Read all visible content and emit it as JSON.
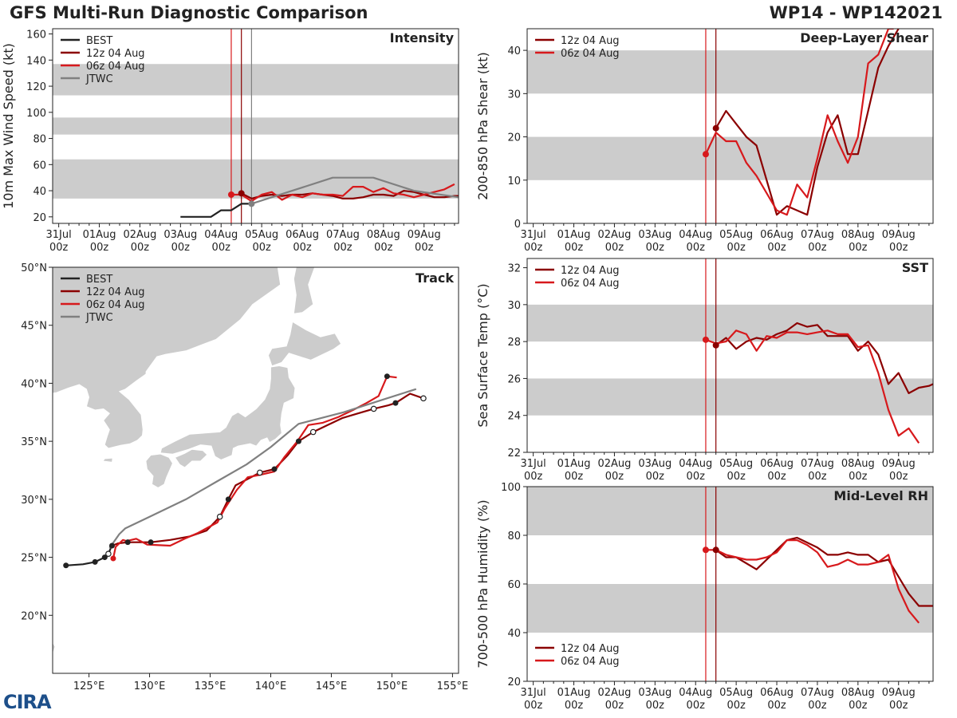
{
  "header": {
    "left_title": "GFS Multi-Run Diagnostic Comparison",
    "right_title": "WP14 - WP142021"
  },
  "logo_text": "CIRA",
  "colors": {
    "best": "#222222",
    "run12": "#8b0000",
    "run06": "#d7191c",
    "jtwc": "#808080",
    "band": "#cccccc",
    "land": "#cccccc"
  },
  "time_axis": {
    "labels": [
      "31Jul\n00z",
      "01Aug\n00z",
      "02Aug\n00z",
      "03Aug\n00z",
      "04Aug\n00z",
      "05Aug\n00z",
      "06Aug\n00z",
      "07Aug\n00z",
      "08Aug\n00z",
      "09Aug\n00z"
    ],
    "range_days": [
      -0.15,
      9.85
    ]
  },
  "chart_data": [
    {
      "id": "intensity",
      "type": "line",
      "title": "Intensity",
      "ylabel": "10m Max Wind Speed (kt)",
      "ylim": [
        15,
        164
      ],
      "yticks": [
        20,
        40,
        60,
        80,
        100,
        120,
        140,
        160
      ],
      "bands": [
        [
          34,
          64
        ],
        [
          83,
          96
        ],
        [
          113,
          137
        ]
      ],
      "vlines": [
        {
          "x": 4.25,
          "color": "run06"
        },
        {
          "x": 4.5,
          "color": "run12"
        },
        {
          "x": 4.75,
          "color": "jtwc"
        }
      ],
      "legend": [
        {
          "label": "BEST",
          "color": "best"
        },
        {
          "label": "12z 04 Aug",
          "color": "run12"
        },
        {
          "label": "06z 04 Aug",
          "color": "run06"
        },
        {
          "label": "JTWC",
          "color": "jtwc"
        }
      ],
      "series": [
        {
          "name": "BEST",
          "color": "best",
          "marker_index": -1,
          "x": [
            3,
            3.25,
            3.5,
            3.75,
            4,
            4.25,
            4.5,
            4.75
          ],
          "y": [
            20,
            20,
            20,
            20,
            25,
            25,
            30,
            30
          ]
        },
        {
          "name": "12z 04 Aug",
          "color": "run12",
          "marker_index": 0,
          "x": [
            4.5,
            4.75,
            5,
            5.25,
            5.5,
            5.75,
            6,
            6.25,
            6.5,
            6.75,
            7,
            7.25,
            7.5,
            7.75,
            8,
            8.25,
            8.5,
            8.75,
            9,
            9.25,
            9.5,
            9.75,
            9.85
          ],
          "y": [
            38,
            34,
            36,
            37,
            36,
            37,
            37,
            38,
            37,
            36,
            34,
            34,
            35,
            37,
            37,
            36,
            40,
            39,
            37,
            35,
            35,
            36,
            36
          ]
        },
        {
          "name": "06z 04 Aug",
          "color": "run06",
          "marker_index": 0,
          "x": [
            4.25,
            4.5,
            4.75,
            5,
            5.25,
            5.5,
            5.75,
            6,
            6.25,
            6.5,
            6.75,
            7,
            7.25,
            7.5,
            7.75,
            8,
            8.25,
            8.5,
            8.75,
            9,
            9.25,
            9.5,
            9.75
          ],
          "y": [
            37,
            37,
            32,
            37,
            39,
            33,
            37,
            35,
            38,
            37,
            37,
            36,
            43,
            43,
            39,
            42,
            38,
            37,
            35,
            37,
            39,
            41,
            45
          ]
        },
        {
          "name": "JTWC",
          "color": "jtwc",
          "marker_index": 0,
          "x": [
            4.75,
            5.75,
            6.75,
            7.75,
            8.75,
            9.85
          ],
          "y": [
            30,
            40,
            50,
            50,
            40,
            35
          ]
        }
      ]
    },
    {
      "id": "shear",
      "type": "line",
      "title": "Deep-Layer Shear",
      "ylabel": "200-850 hPa Shear (kt)",
      "ylim": [
        0,
        45
      ],
      "yticks": [
        0,
        10,
        20,
        30,
        40
      ],
      "bands": [
        [
          10,
          20
        ],
        [
          30,
          40
        ]
      ],
      "vlines": [
        {
          "x": 4.25,
          "color": "run06"
        },
        {
          "x": 4.5,
          "color": "run12"
        }
      ],
      "legend": [
        {
          "label": "12z 04 Aug",
          "color": "run12"
        },
        {
          "label": "06z 04 Aug",
          "color": "run06"
        }
      ],
      "series": [
        {
          "name": "12z 04 Aug",
          "color": "run12",
          "marker_index": 0,
          "x": [
            4.5,
            4.75,
            5,
            5.25,
            5.5,
            6,
            6.25,
            6.5,
            6.75,
            7,
            7.25,
            7.5,
            7.75,
            8,
            8.25,
            8.5,
            8.75,
            9
          ],
          "y": [
            22,
            26,
            23,
            20,
            18,
            2,
            4,
            3,
            2,
            13,
            21,
            25,
            16,
            16,
            26,
            36,
            41,
            45
          ]
        },
        {
          "name": "06z 04 Aug",
          "color": "run06",
          "marker_index": 0,
          "x": [
            4.25,
            4.5,
            4.75,
            5,
            5.25,
            5.5,
            6,
            6.25,
            6.5,
            6.75,
            7,
            7.25,
            7.5,
            7.75,
            8,
            8.25,
            8.5,
            8.75,
            8.88
          ],
          "y": [
            16,
            21,
            19,
            19,
            14,
            11,
            3,
            2,
            9,
            6,
            15,
            25,
            19,
            14,
            20,
            37,
            39,
            45,
            45
          ]
        }
      ]
    },
    {
      "id": "sst",
      "type": "line",
      "title": "SST",
      "ylabel": "Sea Surface Temp (°C)",
      "ylim": [
        22,
        32.5
      ],
      "yticks": [
        22,
        24,
        26,
        28,
        30,
        32
      ],
      "bands": [
        [
          24,
          26
        ],
        [
          28,
          30
        ]
      ],
      "vlines": [
        {
          "x": 4.25,
          "color": "run06"
        },
        {
          "x": 4.5,
          "color": "run12"
        }
      ],
      "legend": [
        {
          "label": "12z 04 Aug",
          "color": "run12"
        },
        {
          "label": "06z 04 Aug",
          "color": "run06"
        }
      ],
      "series": [
        {
          "name": "12z 04 Aug",
          "color": "run12",
          "marker_index": 0,
          "x": [
            4.5,
            4.75,
            5,
            5.25,
            5.5,
            5.75,
            6,
            6.25,
            6.5,
            6.75,
            7,
            7.25,
            7.5,
            7.75,
            8,
            8.25,
            8.5,
            8.75,
            9,
            9.25,
            9.5,
            9.75,
            9.85
          ],
          "y": [
            27.8,
            28.2,
            27.6,
            28.0,
            28.2,
            28.1,
            28.4,
            28.6,
            29.0,
            28.8,
            28.9,
            28.3,
            28.3,
            28.3,
            27.5,
            28.0,
            27.3,
            25.7,
            26.3,
            25.2,
            25.5,
            25.6,
            25.7
          ]
        },
        {
          "name": "06z 04 Aug",
          "color": "run06",
          "marker_index": 0,
          "x": [
            4.25,
            4.5,
            4.75,
            5,
            5.25,
            5.5,
            5.75,
            6,
            6.25,
            6.5,
            6.75,
            7,
            7.25,
            7.5,
            7.75,
            8,
            8.25,
            8.5,
            8.75,
            9,
            9.25,
            9.5
          ],
          "y": [
            28.1,
            27.9,
            28.0,
            28.6,
            28.4,
            27.5,
            28.3,
            28.2,
            28.5,
            28.5,
            28.4,
            28.5,
            28.6,
            28.4,
            28.4,
            27.7,
            27.8,
            26.3,
            24.3,
            22.9,
            23.3,
            22.5
          ]
        }
      ]
    },
    {
      "id": "rh",
      "type": "line",
      "title": "Mid-Level RH",
      "ylabel": "700-500 hPa Humidity (%)",
      "ylim": [
        20,
        100
      ],
      "yticks": [
        20,
        40,
        60,
        80,
        100
      ],
      "bands": [
        [
          40,
          60
        ],
        [
          80,
          100
        ]
      ],
      "vlines": [
        {
          "x": 4.25,
          "color": "run06"
        },
        {
          "x": 4.5,
          "color": "run12"
        }
      ],
      "legend": [
        {
          "label": "12z 04 Aug",
          "color": "run12"
        },
        {
          "label": "06z 04 Aug",
          "color": "run06"
        }
      ],
      "series": [
        {
          "name": "12z 04 Aug",
          "color": "run12",
          "marker_index": 0,
          "x": [
            4.5,
            4.75,
            5,
            5.5,
            6,
            6.25,
            6.5,
            6.75,
            7,
            7.25,
            7.5,
            7.75,
            8,
            8.25,
            8.5,
            8.75,
            9,
            9.25,
            9.5,
            9.85
          ],
          "y": [
            74,
            71,
            71,
            66,
            74,
            78,
            79,
            77,
            75,
            72,
            72,
            73,
            72,
            72,
            69,
            70,
            63,
            56,
            51,
            51
          ]
        },
        {
          "name": "06z 04 Aug",
          "color": "run06",
          "marker_index": 0,
          "x": [
            4.25,
            4.5,
            4.75,
            5,
            5.25,
            5.5,
            5.75,
            6,
            6.25,
            6.5,
            6.75,
            7,
            7.25,
            7.5,
            7.75,
            8,
            8.25,
            8.5,
            8.75,
            9,
            9.25,
            9.5
          ],
          "y": [
            74,
            74,
            72,
            71,
            70,
            70,
            71,
            73,
            78,
            78,
            76,
            73,
            67,
            68,
            70,
            68,
            68,
            69,
            72,
            58,
            49,
            44
          ]
        }
      ]
    },
    {
      "id": "track",
      "type": "scatter",
      "title": "Track",
      "xlim": [
        122,
        155.5
      ],
      "ylim": [
        15,
        50
      ],
      "xticks": [
        125,
        130,
        135,
        140,
        145,
        150,
        155
      ],
      "yticks": [
        20,
        25,
        30,
        35,
        40,
        45,
        50
      ],
      "xticklabels": [
        "125°E",
        "130°E",
        "135°E",
        "140°E",
        "145°E",
        "150°E",
        "155°E"
      ],
      "yticklabels": [
        "20°N",
        "25°N",
        "30°N",
        "35°N",
        "40°N",
        "45°N",
        "50°N"
      ],
      "legend": [
        {
          "label": "BEST",
          "color": "best"
        },
        {
          "label": "12z 04 Aug",
          "color": "run12"
        },
        {
          "label": "06z 04 Aug",
          "color": "run06"
        },
        {
          "label": "JTWC",
          "color": "jtwc"
        }
      ],
      "series": [
        {
          "name": "BEST",
          "color": "best",
          "lon": [
            123.1,
            124.5,
            125.5,
            126.3,
            126.6,
            126.8
          ],
          "lat": [
            24.3,
            24.4,
            24.6,
            25.0,
            25.3,
            25.8
          ],
          "filled": [
            1,
            0,
            1,
            1,
            0,
            0
          ]
        },
        {
          "name": "12z 04 Aug",
          "color": "run12",
          "lon": [
            126.9,
            127.4,
            128.2,
            128.8,
            130.1,
            131.7,
            133.3,
            134.7,
            135.8,
            136.5,
            137.1,
            138.2,
            139.1,
            140.3,
            141.4,
            142.3,
            143.5,
            144.7,
            145.9,
            147.2,
            148.5,
            149.7,
            150.3,
            151.5,
            152.6
          ],
          "lat": [
            26.0,
            26.2,
            26.3,
            26.3,
            26.3,
            26.5,
            26.8,
            27.3,
            28.5,
            30.0,
            31.2,
            31.8,
            32.3,
            32.6,
            33.8,
            35.0,
            35.8,
            36.4,
            37.0,
            37.4,
            37.8,
            38.1,
            38.3,
            39.1,
            38.7
          ],
          "filled": [
            1,
            0,
            1,
            0,
            1,
            0,
            0,
            0,
            0,
            1,
            0,
            0,
            0,
            1,
            0,
            1,
            0,
            0,
            0,
            0,
            0,
            0,
            1,
            0,
            0
          ]
        },
        {
          "name": "06z 04 Aug",
          "color": "run06",
          "lon": [
            127.0,
            127.2,
            127.8,
            128.1,
            128.9,
            129.8,
            131.7,
            132.9,
            134.0,
            135.6,
            136.2,
            137.2,
            138.1,
            139.1,
            140.3,
            141.1,
            142.2,
            143.1,
            144.3,
            145.6,
            146.8,
            147.9,
            148.9,
            149.6,
            150.4
          ],
          "lat": [
            24.9,
            25.9,
            26.5,
            26.4,
            26.6,
            26.1,
            26.0,
            26.6,
            27.1,
            28.0,
            29.2,
            30.8,
            31.9,
            32.1,
            32.4,
            33.6,
            35.0,
            36.4,
            36.6,
            37.1,
            37.7,
            38.3,
            38.9,
            40.6,
            40.5
          ],
          "filled": [
            1,
            0,
            0,
            0,
            0,
            0,
            0,
            0,
            0,
            0,
            0,
            0,
            0,
            0,
            0,
            0,
            0,
            0,
            0,
            0,
            0,
            0,
            0,
            1,
            0
          ]
        },
        {
          "name": "JTWC",
          "color": "jtwc",
          "lon": [
            126.7,
            127.5,
            128.0,
            130.0,
            133.0,
            135.5,
            138.0,
            140.0,
            142.3,
            146.0,
            149.0,
            152.0
          ],
          "lat": [
            25.8,
            27.0,
            27.5,
            28.5,
            30.0,
            31.5,
            33.0,
            34.5,
            36.5,
            37.5,
            38.5,
            39.5
          ],
          "filled": [
            0,
            0,
            0,
            0,
            0,
            0,
            0,
            0,
            0,
            0,
            0,
            0
          ]
        }
      ]
    }
  ]
}
